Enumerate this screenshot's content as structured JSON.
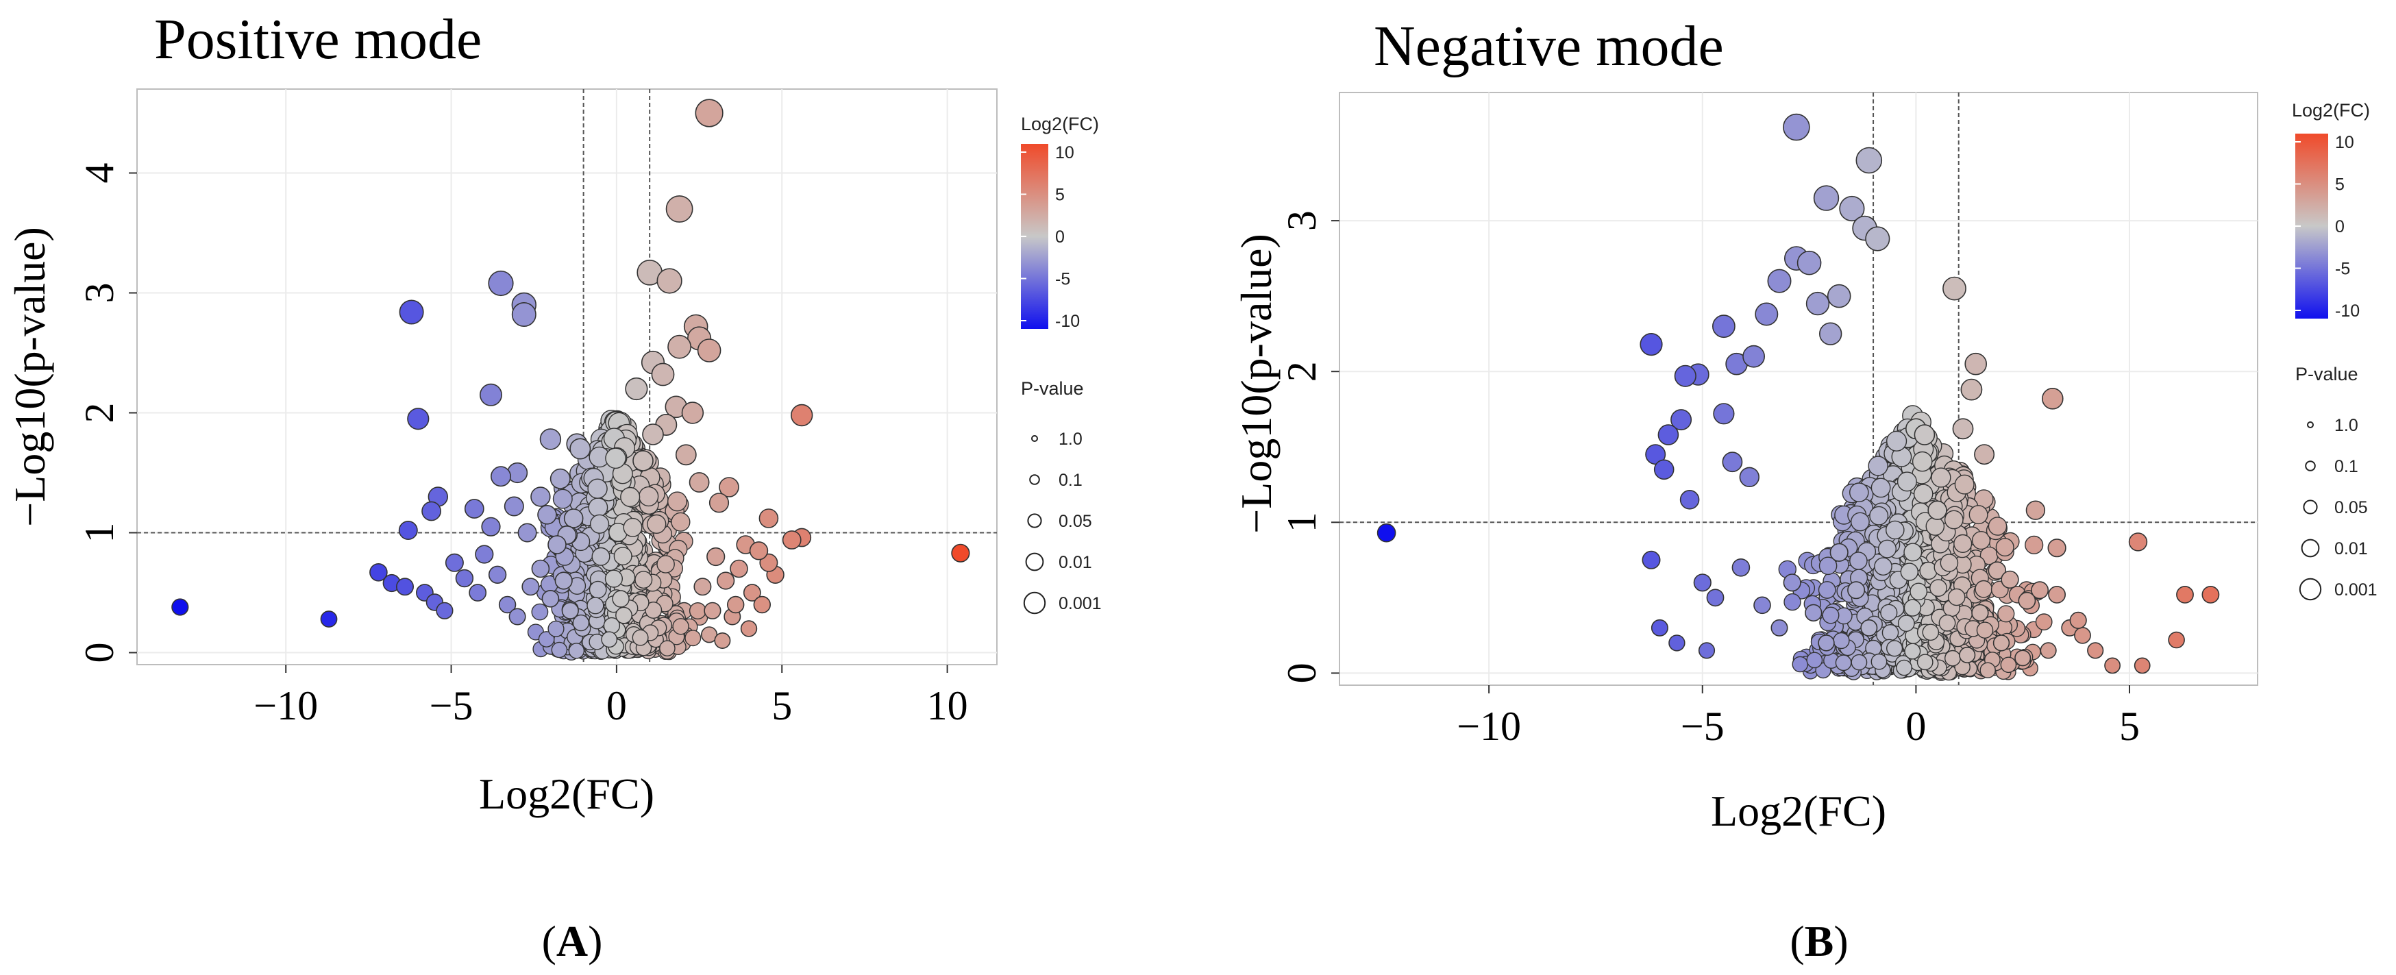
{
  "colors": {
    "low": "#1010ee",
    "mid": "#c8c8c8",
    "high": "#f04a2a",
    "threshold_line": "#555555",
    "grid": "#ebebeb",
    "point_outline": "#333333"
  },
  "legend": {
    "color_title": "Log2(FC)",
    "color_ticks": [
      "10",
      "5",
      "0",
      "-5",
      "-10"
    ],
    "size_title": "P-value",
    "size_labels": [
      "1.0",
      "0.1",
      "0.05",
      "0.01",
      "0.001"
    ]
  },
  "chart_data": [
    {
      "type": "scatter",
      "panel_label": "A",
      "title": "Positive mode",
      "xlabel": "Log2(FC)",
      "ylabel": "−Log10(p-value)",
      "xlim": [
        -14.5,
        11.5
      ],
      "ylim": [
        -0.1,
        4.7
      ],
      "xticks": [
        -10,
        -5,
        0,
        5,
        10
      ],
      "xtick_labels": [
        "−10",
        "−5",
        "0",
        "5",
        "10"
      ],
      "yticks": [
        0,
        1,
        2,
        3,
        4
      ],
      "ytick_labels": [
        "0",
        "1",
        "2",
        "3",
        "4"
      ],
      "thresholds": {
        "x": [
          -1,
          1
        ],
        "y": 1
      },
      "grid": true,
      "legend_position": "right",
      "points": [
        [
          2.8,
          4.5
        ],
        [
          1.9,
          3.7
        ],
        [
          -3.5,
          3.08
        ],
        [
          1.0,
          3.17
        ],
        [
          1.6,
          3.1
        ],
        [
          -2.8,
          2.9
        ],
        [
          -2.8,
          2.82
        ],
        [
          -6.2,
          2.84
        ],
        [
          2.4,
          2.72
        ],
        [
          2.5,
          2.62
        ],
        [
          1.9,
          2.55
        ],
        [
          2.8,
          2.52
        ],
        [
          1.1,
          2.42
        ],
        [
          1.4,
          2.32
        ],
        [
          -3.8,
          2.15
        ],
        [
          0.6,
          2.2
        ],
        [
          1.8,
          2.05
        ],
        [
          2.3,
          2.0
        ],
        [
          -6.0,
          1.95
        ],
        [
          5.6,
          1.98
        ],
        [
          1.5,
          1.9
        ],
        [
          1.1,
          1.82
        ],
        [
          -2.0,
          1.78
        ],
        [
          -1.2,
          1.74
        ],
        [
          -1.1,
          1.7
        ],
        [
          2.1,
          1.65
        ],
        [
          0.8,
          1.6
        ],
        [
          -3.0,
          1.5
        ],
        [
          -3.5,
          1.47
        ],
        [
          -1.7,
          1.45
        ],
        [
          2.5,
          1.42
        ],
        [
          3.4,
          1.38
        ],
        [
          -2.3,
          1.3
        ],
        [
          -5.4,
          1.3
        ],
        [
          -3.1,
          1.22
        ],
        [
          -4.3,
          1.2
        ],
        [
          3.1,
          1.25
        ],
        [
          -5.6,
          1.18
        ],
        [
          -2.1,
          1.15
        ],
        [
          -1.3,
          1.12
        ],
        [
          4.6,
          1.12
        ],
        [
          -3.8,
          1.05
        ],
        [
          -6.3,
          1.02
        ],
        [
          -2.7,
          1.0
        ],
        [
          -1.5,
          0.98
        ],
        [
          5.6,
          0.96
        ],
        [
          5.3,
          0.94
        ],
        [
          10.4,
          0.83
        ],
        [
          -13.2,
          0.38
        ],
        [
          -8.7,
          0.28
        ],
        [
          -7.2,
          0.67
        ],
        [
          -6.8,
          0.58
        ],
        [
          -6.4,
          0.55
        ],
        [
          -5.8,
          0.5
        ],
        [
          -5.5,
          0.42
        ],
        [
          -5.2,
          0.35
        ],
        [
          -4.9,
          0.75
        ],
        [
          -4.6,
          0.62
        ],
        [
          -4.2,
          0.5
        ],
        [
          -4.0,
          0.82
        ],
        [
          -3.6,
          0.65
        ],
        [
          -3.3,
          0.4
        ],
        [
          -3.0,
          0.3
        ],
        [
          -2.6,
          0.55
        ],
        [
          -2.3,
          0.7
        ],
        [
          -2.0,
          0.45
        ],
        [
          -1.8,
          0.9
        ],
        [
          -1.6,
          0.6
        ],
        [
          -1.4,
          0.35
        ],
        [
          3.0,
          0.8
        ],
        [
          3.3,
          0.6
        ],
        [
          3.7,
          0.7
        ],
        [
          4.1,
          0.5
        ],
        [
          4.4,
          0.4
        ],
        [
          4.8,
          0.65
        ],
        [
          3.5,
          0.3
        ],
        [
          4.0,
          0.2
        ],
        [
          2.8,
          0.15
        ],
        [
          4.6,
          0.75
        ],
        [
          3.9,
          0.9
        ],
        [
          3.6,
          0.4
        ],
        [
          4.3,
          0.85
        ],
        [
          2.6,
          0.55
        ],
        [
          2.9,
          0.35
        ],
        [
          3.2,
          0.1
        ]
      ]
    },
    {
      "type": "scatter",
      "panel_label": "B",
      "title": "Negative mode",
      "xlabel": "Log2(FC)",
      "ylabel": "−Log10(p-value)",
      "xlim": [
        -13.5,
        8.0
      ],
      "ylim": [
        -0.08,
        3.85
      ],
      "xticks": [
        -10,
        -5,
        0,
        5
      ],
      "xtick_labels": [
        "−10",
        "−5",
        "0",
        "5"
      ],
      "yticks": [
        0,
        1,
        2,
        3
      ],
      "ytick_labels": [
        "0",
        "1",
        "2",
        "3"
      ],
      "thresholds": {
        "x": [
          -1,
          1
        ],
        "y": 1
      },
      "grid": true,
      "legend_position": "right",
      "points": [
        [
          -2.8,
          3.62
        ],
        [
          -1.1,
          3.4
        ],
        [
          -2.1,
          3.15
        ],
        [
          -1.5,
          3.08
        ],
        [
          -1.2,
          2.95
        ],
        [
          -0.9,
          2.88
        ],
        [
          -2.8,
          2.75
        ],
        [
          -2.5,
          2.72
        ],
        [
          0.9,
          2.55
        ],
        [
          -3.2,
          2.6
        ],
        [
          -1.8,
          2.5
        ],
        [
          -2.3,
          2.45
        ],
        [
          -3.5,
          2.38
        ],
        [
          -4.5,
          2.3
        ],
        [
          -2.0,
          2.25
        ],
        [
          -6.2,
          2.18
        ],
        [
          1.4,
          2.05
        ],
        [
          -4.2,
          2.05
        ],
        [
          -3.8,
          2.1
        ],
        [
          -5.1,
          1.98
        ],
        [
          -5.4,
          1.97
        ],
        [
          1.3,
          1.88
        ],
        [
          3.2,
          1.82
        ],
        [
          -4.5,
          1.72
        ],
        [
          -5.5,
          1.68
        ],
        [
          0.0,
          1.62
        ],
        [
          0.2,
          1.58
        ],
        [
          1.1,
          1.62
        ],
        [
          -5.8,
          1.58
        ],
        [
          1.6,
          1.45
        ],
        [
          -6.1,
          1.45
        ],
        [
          -4.3,
          1.4
        ],
        [
          -5.9,
          1.35
        ],
        [
          -3.9,
          1.3
        ],
        [
          -5.3,
          1.15
        ],
        [
          0.5,
          1.08
        ],
        [
          2.8,
          1.08
        ],
        [
          -12.4,
          0.93
        ],
        [
          5.2,
          0.87
        ],
        [
          3.3,
          0.83
        ],
        [
          -6.2,
          0.75
        ],
        [
          -5.0,
          0.6
        ],
        [
          -4.7,
          0.5
        ],
        [
          -4.1,
          0.7
        ],
        [
          -3.6,
          0.45
        ],
        [
          -3.2,
          0.3
        ],
        [
          -2.9,
          0.6
        ],
        [
          -2.4,
          0.4
        ],
        [
          -2.1,
          0.2
        ],
        [
          -1.8,
          0.8
        ],
        [
          -1.4,
          0.55
        ],
        [
          -1.1,
          0.3
        ],
        [
          1.5,
          0.4
        ],
        [
          1.9,
          0.68
        ],
        [
          2.2,
          0.62
        ],
        [
          2.6,
          0.48
        ],
        [
          2.9,
          0.55
        ],
        [
          3.3,
          0.52
        ],
        [
          3.6,
          0.3
        ],
        [
          3.9,
          0.25
        ],
        [
          4.2,
          0.15
        ],
        [
          4.6,
          0.05
        ],
        [
          5.3,
          0.05
        ],
        [
          6.1,
          0.22
        ],
        [
          6.3,
          0.52
        ],
        [
          6.9,
          0.52
        ],
        [
          2.5,
          0.1
        ],
        [
          3.1,
          0.15
        ],
        [
          2.0,
          0.2
        ],
        [
          1.2,
          0.12
        ],
        [
          3.8,
          0.35
        ],
        [
          -5.6,
          0.2
        ],
        [
          -4.9,
          0.15
        ],
        [
          -6.0,
          0.3
        ]
      ]
    }
  ]
}
